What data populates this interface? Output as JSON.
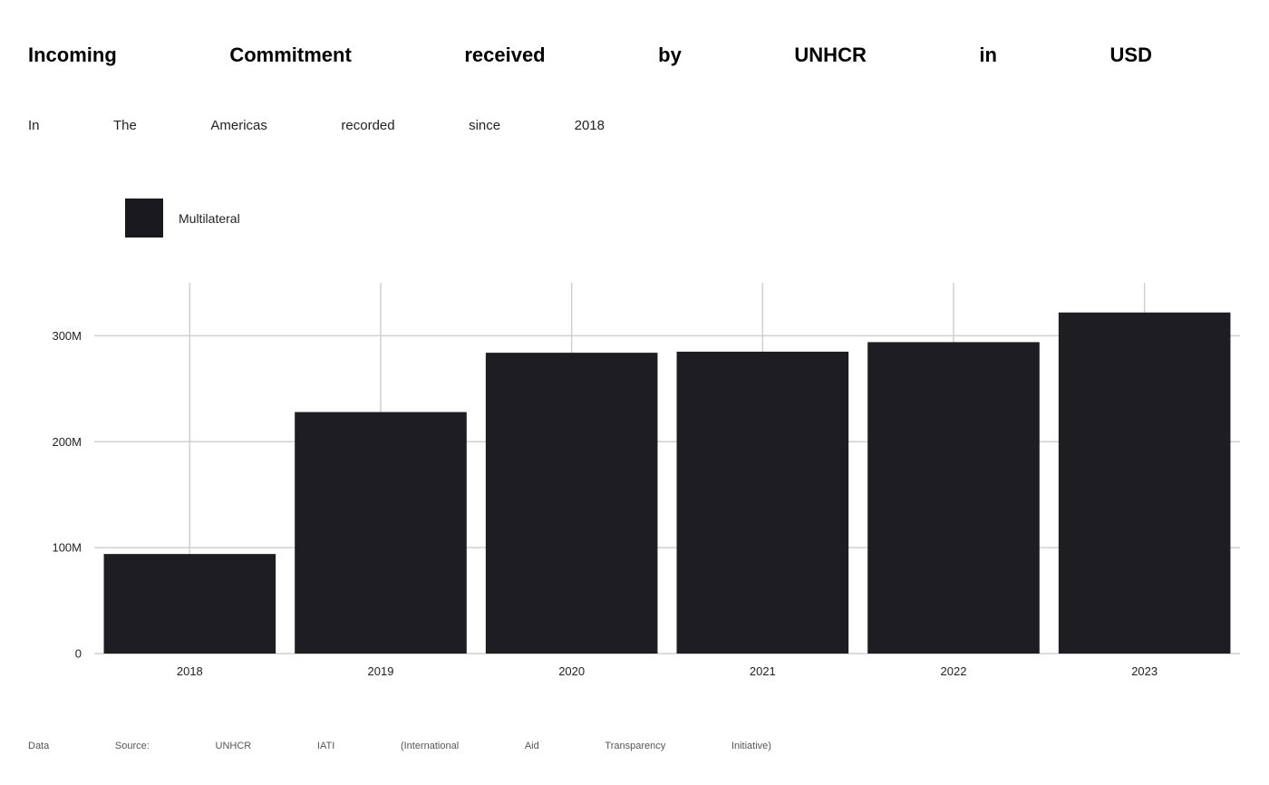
{
  "title_words": [
    "Incoming",
    "Commitment",
    "received",
    "by",
    "UNHCR",
    "in",
    "USD"
  ],
  "subtitle_words": [
    "In",
    "The",
    "Americas",
    "recorded",
    "since",
    "2018"
  ],
  "caption_words": [
    "Data",
    "Source:",
    "UNHCR",
    "IATI",
    "(International",
    "Aid",
    "Transparency",
    "Initiative)"
  ],
  "colors": {
    "bar": "#1a191e",
    "grid": "#d0d0d0"
  },
  "chart_data": {
    "type": "bar",
    "categories": [
      "2018",
      "2019",
      "2020",
      "2021",
      "2022",
      "2023"
    ],
    "series": [
      {
        "name": "Multilateral",
        "values": [
          94000000,
          228000000,
          284000000,
          285000000,
          294000000,
          322000000
        ]
      }
    ],
    "ylim": [
      0,
      350000000
    ],
    "yticks": [
      {
        "value": 0,
        "label": "0"
      },
      {
        "value": 100000000,
        "label": "100M"
      },
      {
        "value": 200000000,
        "label": "200M"
      },
      {
        "value": 300000000,
        "label": "300M"
      }
    ],
    "grid": true,
    "legend_position": "top-left"
  }
}
